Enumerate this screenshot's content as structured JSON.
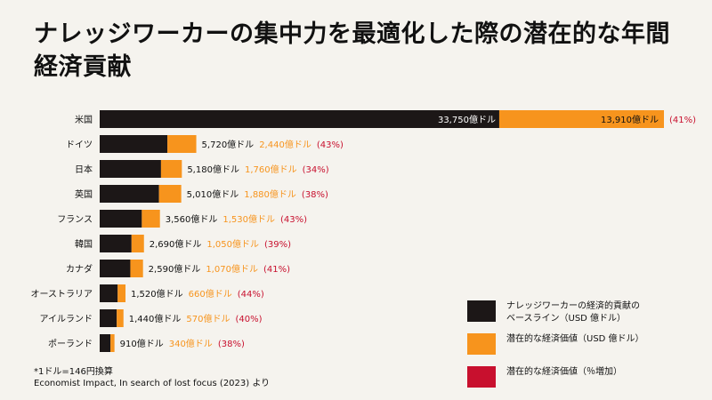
{
  "title": "ナレッジワーカーの集中力を最適化した際の潜在的な年間経済貢献",
  "colors": {
    "baseline": "#1c1717",
    "potential": "#f7941d",
    "percent": "#c8102e",
    "potential_text": "#f7941d"
  },
  "legend": [
    {
      "label": "ナレッジワーカーの経済的貢献の\nベースライン（USD 億ドル）",
      "color": "#1c1717"
    },
    {
      "label": "潜在的な経済価値（USD 億ドル）",
      "color": "#f7941d"
    },
    {
      "label": "潜在的な経済価値（％増加）",
      "color": "#c8102e"
    }
  ],
  "footnote": [
    "*1ドル=146円換算",
    "Economist Impact, In search of lost focus (2023) より"
  ],
  "chart_data": {
    "type": "bar",
    "stacked": true,
    "orientation": "horizontal",
    "categories": [
      "米国",
      "ドイツ",
      "日本",
      "英国",
      "フランス",
      "韓国",
      "カナダ",
      "オーストラリア",
      "アイルランド",
      "ポーランド"
    ],
    "series": [
      {
        "name": "ナレッジワーカーの経済的貢献のベースライン（USD 億ドル）",
        "values": [
          33750,
          5720,
          5180,
          5010,
          3560,
          2690,
          2590,
          1520,
          1440,
          910
        ]
      },
      {
        "name": "潜在的な経済価値（USD 億ドル）",
        "values": [
          13910,
          2440,
          1760,
          1880,
          1530,
          1050,
          1070,
          660,
          570,
          340
        ]
      },
      {
        "name": "潜在的な経済価値（％増加）",
        "values": [
          41,
          43,
          34,
          38,
          43,
          39,
          41,
          44,
          40,
          38
        ]
      }
    ],
    "base_labels": [
      "33,750億ドル",
      "5,720億ドル",
      "5,180億ドル",
      "5,010億ドル",
      "3,560億ドル",
      "2,690億ドル",
      "2,590億ドル",
      "1,520億ドル",
      "1,440億ドル",
      "910億ドル"
    ],
    "potential_labels": [
      "13,910億ドル",
      "2,440億ドル",
      "1,760億ドル",
      "1,880億ドル",
      "1,530億ドル",
      "1,050億ドル",
      "1,070億ドル",
      "660億ドル",
      "570億ドル",
      "340億ドル"
    ],
    "percent_labels": [
      "(41%)",
      "(43%)",
      "(34%)",
      "(38%)",
      "(43%)",
      "(39%)",
      "(41%)",
      "(44%)",
      "(40%)",
      "(38%)"
    ],
    "xlim": [
      0,
      47660
    ]
  }
}
